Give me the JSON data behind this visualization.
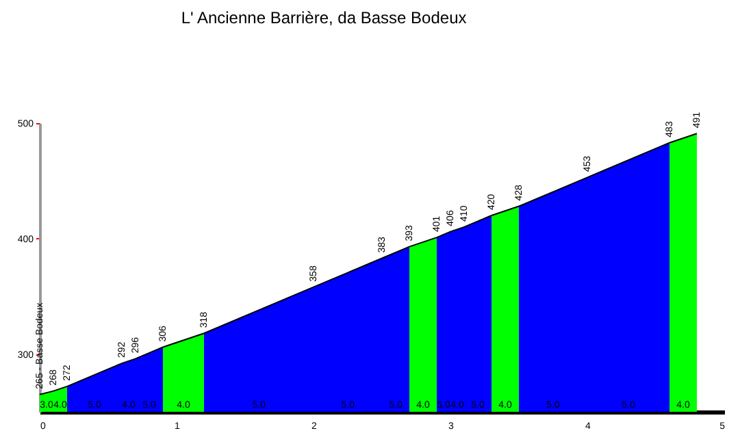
{
  "chart_data": {
    "type": "area",
    "title": "L' Ancienne Barrière, da Basse Bodeux",
    "series": [
      {
        "name": "3.0",
        "color": "#00ff00",
        "x": [
          0,
          0.1
        ],
        "values": [
          265,
          268
        ]
      },
      {
        "name": "4.0",
        "color": "#00ff00",
        "x": [
          0.1,
          0.2
        ],
        "values": [
          268,
          272
        ]
      },
      {
        "name": "5.0",
        "color": "#0000ff",
        "x": [
          0.2,
          0.6
        ],
        "values": [
          272,
          292
        ]
      },
      {
        "name": "4.0",
        "color": "#0000ff",
        "x": [
          0.6,
          0.7
        ],
        "values": [
          292,
          296
        ]
      },
      {
        "name": "5.0",
        "color": "#0000ff",
        "x": [
          0.7,
          0.9
        ],
        "values": [
          296,
          306
        ]
      },
      {
        "name": "4.0",
        "color": "#00ff00",
        "x": [
          0.9,
          1.2
        ],
        "values": [
          306,
          318
        ]
      },
      {
        "name": "5.0",
        "color": "#0000ff",
        "x": [
          1.2,
          2.0
        ],
        "values": [
          318,
          358
        ]
      },
      {
        "name": "5.0",
        "color": "#0000ff",
        "x": [
          2.0,
          2.5
        ],
        "values": [
          358,
          383
        ]
      },
      {
        "name": "5.0",
        "color": "#0000ff",
        "x": [
          2.5,
          2.7
        ],
        "values": [
          383,
          393
        ]
      },
      {
        "name": "4.0",
        "color": "#00ff00",
        "x": [
          2.7,
          2.9
        ],
        "values": [
          393,
          401
        ]
      },
      {
        "name": "5.0",
        "color": "#0000ff",
        "x": [
          2.9,
          3.0
        ],
        "values": [
          401,
          406
        ]
      },
      {
        "name": "4.0",
        "color": "#0000ff",
        "x": [
          3.0,
          3.1
        ],
        "values": [
          406,
          410
        ]
      },
      {
        "name": "5.0",
        "color": "#0000ff",
        "x": [
          3.1,
          3.3
        ],
        "values": [
          410,
          420
        ]
      },
      {
        "name": "4.0",
        "color": "#00ff00",
        "x": [
          3.3,
          3.5
        ],
        "values": [
          420,
          428
        ]
      },
      {
        "name": "5.0",
        "color": "#0000ff",
        "x": [
          3.5,
          4.0
        ],
        "values": [
          428,
          453
        ]
      },
      {
        "name": "5.0",
        "color": "#0000ff",
        "x": [
          4.0,
          4.6
        ],
        "values": [
          453,
          483
        ]
      },
      {
        "name": "4.0",
        "color": "#00ff00",
        "x": [
          4.6,
          4.8
        ],
        "values": [
          483,
          491
        ]
      }
    ],
    "annotations": [
      {
        "text": "265 - Basse Bodeux",
        "x": 0,
        "y": 265
      },
      {
        "text": "268",
        "x": 0.1,
        "y": 268
      },
      {
        "text": "272",
        "x": 0.2,
        "y": 272
      },
      {
        "text": "292",
        "x": 0.6,
        "y": 292
      },
      {
        "text": "296",
        "x": 0.7,
        "y": 296
      },
      {
        "text": "306",
        "x": 0.9,
        "y": 306
      },
      {
        "text": "318",
        "x": 1.2,
        "y": 318
      },
      {
        "text": "358",
        "x": 2.0,
        "y": 358
      },
      {
        "text": "383",
        "x": 2.5,
        "y": 383
      },
      {
        "text": "393",
        "x": 2.7,
        "y": 393
      },
      {
        "text": "401",
        "x": 2.9,
        "y": 401
      },
      {
        "text": "406",
        "x": 3.0,
        "y": 406
      },
      {
        "text": "410",
        "x": 3.1,
        "y": 410
      },
      {
        "text": "420",
        "x": 3.3,
        "y": 420
      },
      {
        "text": "428",
        "x": 3.5,
        "y": 428
      },
      {
        "text": "453",
        "x": 4.0,
        "y": 453
      },
      {
        "text": "483",
        "x": 4.6,
        "y": 483
      },
      {
        "text": "491",
        "x": 4.8,
        "y": 491
      }
    ],
    "xlim": [
      0,
      5
    ],
    "xticks": [
      0,
      1,
      2,
      3,
      4,
      5
    ],
    "ylim": [
      250,
      500
    ],
    "yticks": [
      300,
      400,
      500
    ],
    "grid": false
  }
}
